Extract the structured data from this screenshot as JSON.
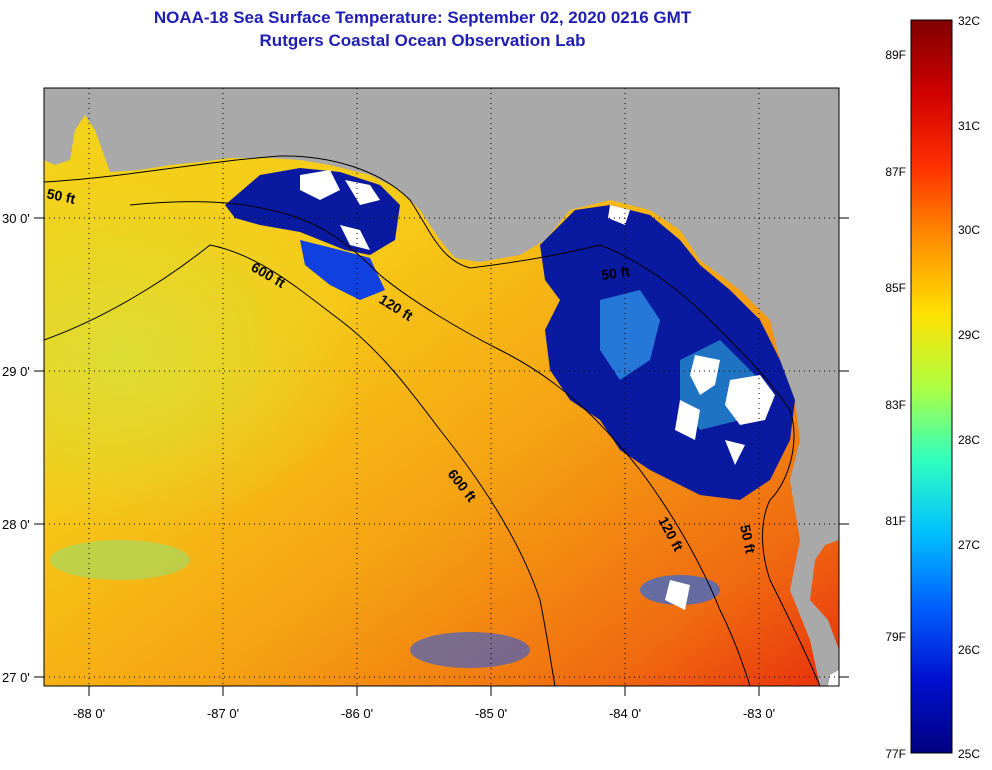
{
  "title": {
    "line1": "NOAA-18 Sea Surface Temperature:  September 02, 2020 0216 GMT",
    "line2": "Rutgers Coastal Ocean Observation Lab"
  },
  "map": {
    "lon_ticks": [
      {
        "value": -88,
        "label": "-88 0'"
      },
      {
        "value": -87,
        "label": "-87 0'"
      },
      {
        "value": -86,
        "label": "-86 0'"
      },
      {
        "value": -85,
        "label": "-85 0'"
      },
      {
        "value": -84,
        "label": "-84 0'"
      },
      {
        "value": -83,
        "label": "-83 0'"
      }
    ],
    "lat_ticks": [
      {
        "value": 30,
        "label": "30 0'"
      },
      {
        "value": 29,
        "label": "29 0'"
      },
      {
        "value": 28,
        "label": "28 0'"
      },
      {
        "value": 27,
        "label": "27 0'"
      }
    ],
    "contour_labels": [
      {
        "text": "50 ft",
        "name": "contour-label-50ft-west"
      },
      {
        "text": "600 ft",
        "name": "contour-label-600ft-north"
      },
      {
        "text": "120 ft",
        "name": "contour-label-120ft-north"
      },
      {
        "text": "50 ft",
        "name": "contour-label-50ft-bigbend"
      },
      {
        "text": "600 ft",
        "name": "contour-label-600ft-south"
      },
      {
        "text": "120 ft",
        "name": "contour-label-120ft-south"
      },
      {
        "text": "50 ft",
        "name": "contour-label-50ft-south"
      }
    ],
    "colors": {
      "land": "#a9a9a9",
      "cloud": "#ffffff",
      "contour": "#000000"
    }
  },
  "colorbar": {
    "celsius_labels": [
      "32C",
      "31C",
      "30C",
      "29C",
      "28C",
      "27C",
      "26C",
      "25C"
    ],
    "fahrenheit_labels": [
      "89F",
      "87F",
      "85F",
      "83F",
      "81F",
      "79F",
      "77F"
    ],
    "gradient_stops": [
      "#800000",
      "#ff0000",
      "#ff8000",
      "#ffff00",
      "#80ff80",
      "#00ffff",
      "#0080ff",
      "#0000ff",
      "#000080"
    ]
  }
}
